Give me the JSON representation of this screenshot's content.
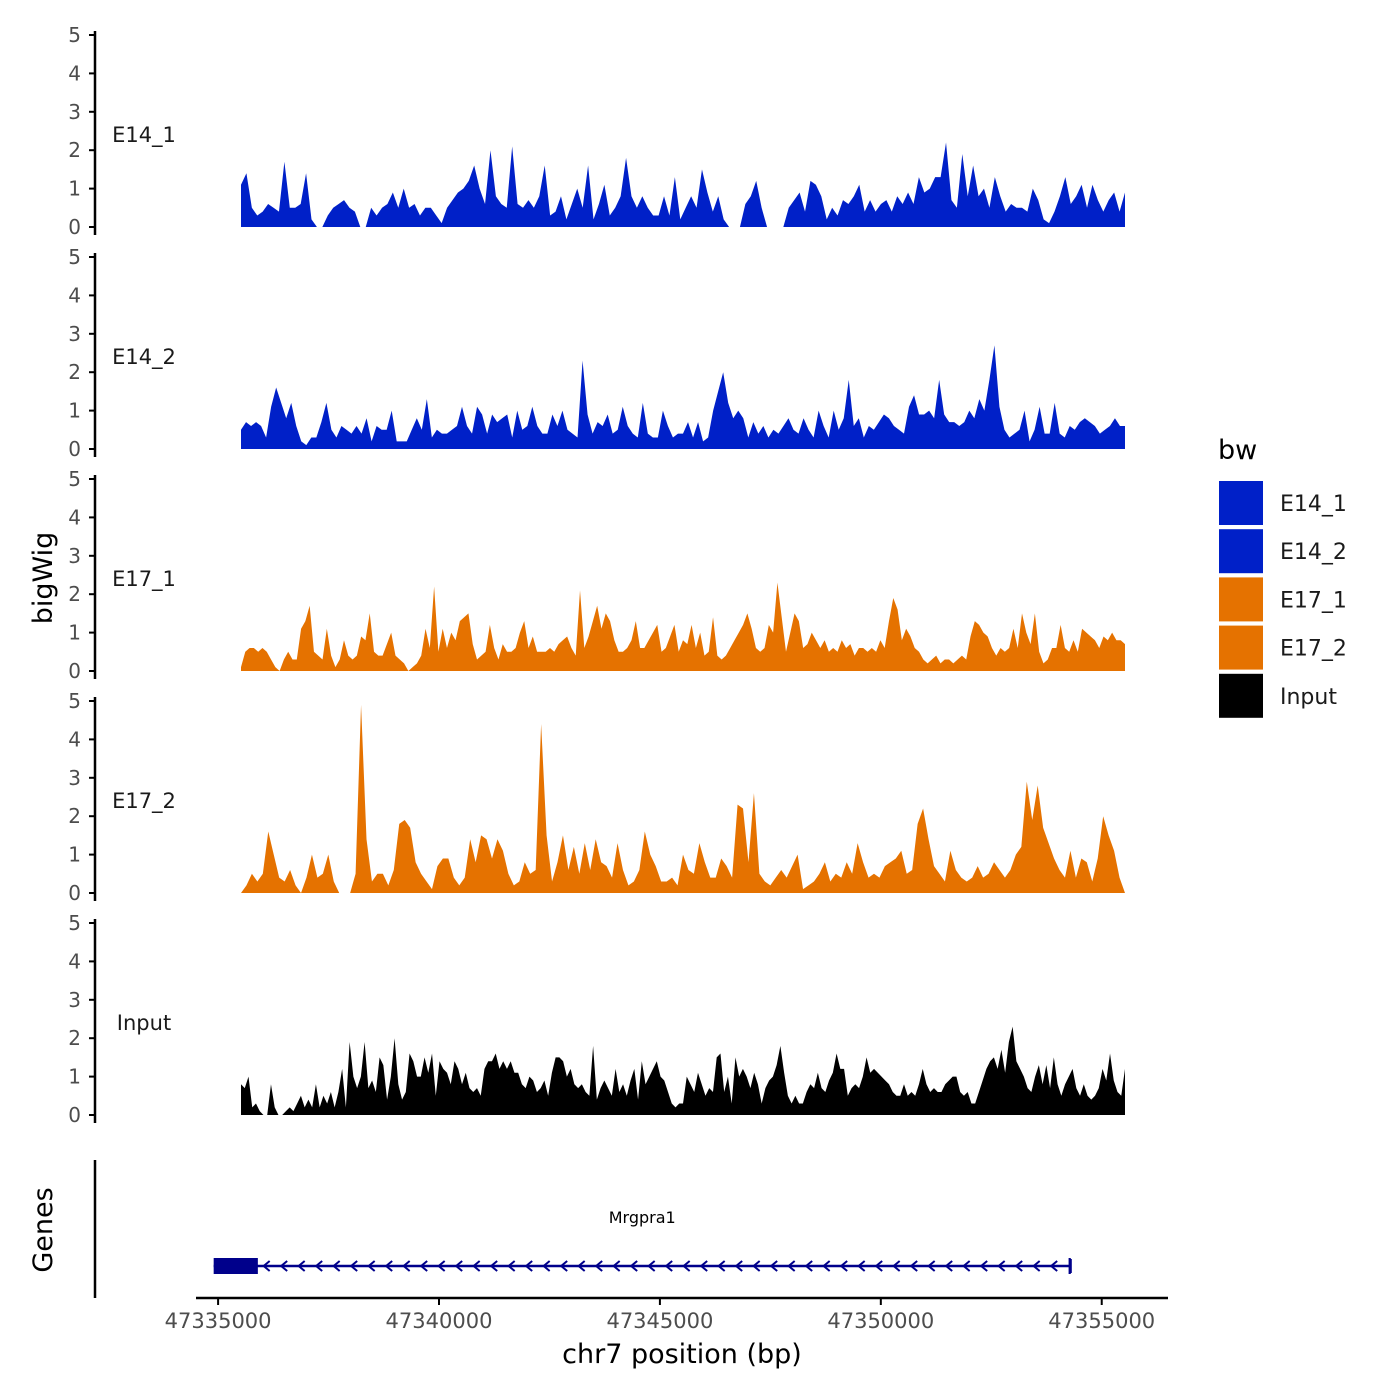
{
  "chart_data": {
    "type": "area",
    "chromosome": "chr7",
    "xlabel": "chr7 position (bp)",
    "ylabel": "bigWig",
    "genes_panel_label": "Genes",
    "xlim": [
      47334500,
      47356500
    ],
    "data_range": [
      47334900,
      47356200
    ],
    "ylim": [
      0,
      5
    ],
    "x_ticks": [
      47335000,
      47340000,
      47345000,
      47350000,
      47355000
    ],
    "x_tick_labels": [
      "47335000",
      "47340000",
      "47345000",
      "47350000",
      "47355000"
    ],
    "y_ticks": [
      0,
      1,
      2,
      3,
      4,
      5
    ],
    "y_tick_labels": [
      "0",
      "1",
      "2",
      "3",
      "4",
      "5"
    ],
    "grid": false,
    "legend": {
      "title": "bw",
      "position": "right",
      "entries": [
        {
          "label": "E14_1",
          "color": "#0020C8"
        },
        {
          "label": "E14_2",
          "color": "#0020C8"
        },
        {
          "label": "E17_1",
          "color": "#E57200"
        },
        {
          "label": "E17_2",
          "color": "#E57200"
        },
        {
          "label": "Input",
          "color": "#000000"
        }
      ]
    },
    "series": [
      {
        "name": "E14_1",
        "label": "E14_1",
        "color": "#0020C8",
        "values": [
          1.1,
          1.4,
          0.5,
          0.3,
          0.4,
          0.6,
          0.5,
          0.4,
          1.7,
          0.5,
          0.5,
          0.6,
          1.4,
          0.2,
          0,
          0,
          0.3,
          0.5,
          0.6,
          0.7,
          0.5,
          0.4,
          0,
          0,
          0.5,
          0.3,
          0.5,
          0.6,
          0.9,
          0.5,
          1.0,
          0.5,
          0.6,
          0.3,
          0.5,
          0.5,
          0.3,
          0.1,
          0.5,
          0.7,
          0.9,
          1.0,
          1.2,
          1.6,
          1.0,
          0.6,
          2.0,
          0.8,
          0.6,
          0.5,
          2.1,
          0.6,
          0.5,
          0.7,
          0.5,
          0.8,
          1.6,
          0.3,
          0.4,
          0.8,
          0.2,
          0.6,
          1.0,
          0.5,
          1.6,
          0.2,
          0.6,
          1.1,
          0.3,
          0.5,
          0.8,
          1.8,
          0.8,
          0.5,
          0.8,
          0.5,
          0.3,
          0.3,
          0.8,
          0.3,
          1.3,
          0.2,
          0.5,
          0.8,
          0.5,
          1.5,
          0.9,
          0.4,
          0.8,
          0.2,
          0,
          0,
          0,
          0.6,
          0.8,
          1.2,
          0.5,
          0,
          0,
          0,
          0,
          0.5,
          0.7,
          0.9,
          0.4,
          1.2,
          1.1,
          0.8,
          0.2,
          0.5,
          0.3,
          0.7,
          0.6,
          0.8,
          1.1,
          0.4,
          0.7,
          0.4,
          0.6,
          0.7,
          0.4,
          0.8,
          0.6,
          0.9,
          0.6,
          1.3,
          0.9,
          1.0,
          1.3,
          1.3,
          2.2,
          0.7,
          0.5,
          1.9,
          0.8,
          1.6,
          0.8,
          1.0,
          0.5,
          1.3,
          0.8,
          0.4,
          0.6,
          0.5,
          0.5,
          0.4,
          1.0,
          0.7,
          0.2,
          0.1,
          0.4,
          0.8,
          1.3,
          0.6,
          0.8,
          1.1,
          0.5,
          1.1,
          0.7,
          0.4,
          0.7,
          0.9,
          0.4,
          0.9
        ]
      },
      {
        "name": "E14_2",
        "label": "E14_2",
        "color": "#0020C8",
        "values": [
          0.5,
          0.7,
          0.6,
          0.7,
          0.6,
          0.3,
          1.1,
          1.6,
          1.2,
          0.8,
          1.2,
          0.6,
          0.2,
          0.1,
          0.3,
          0.3,
          0.7,
          1.2,
          0.5,
          0.3,
          0.6,
          0.5,
          0.4,
          0.6,
          0.4,
          0.8,
          0.2,
          0.6,
          0.5,
          0.5,
          1.0,
          0.2,
          0.2,
          0.2,
          0.5,
          0.8,
          0.5,
          1.3,
          0.3,
          0.5,
          0.4,
          0.4,
          0.5,
          0.6,
          1.1,
          0.6,
          0.4,
          1.1,
          0.9,
          0.4,
          0.9,
          0.7,
          0.8,
          0.9,
          0.3,
          1.0,
          0.5,
          0.6,
          1.1,
          0.6,
          0.4,
          0.4,
          0.9,
          0.6,
          1.0,
          0.5,
          0.4,
          0.3,
          2.3,
          0.9,
          0.4,
          0.7,
          0.6,
          0.9,
          0.4,
          0.5,
          1.1,
          0.6,
          0.4,
          0.3,
          1.2,
          0.4,
          0.3,
          0.3,
          1.0,
          0.6,
          0.3,
          0.4,
          0.4,
          0.7,
          0.3,
          0.7,
          0.2,
          0.3,
          1.0,
          1.5,
          2.0,
          1.2,
          0.8,
          1.0,
          0.8,
          0.3,
          0.7,
          0.4,
          0.6,
          0.3,
          0.5,
          0.4,
          0.6,
          0.8,
          0.5,
          0.4,
          0.8,
          0.5,
          0.3,
          1.0,
          0.6,
          0.3,
          1.0,
          0.5,
          0.8,
          1.8,
          0.6,
          0.8,
          0.3,
          0.6,
          0.5,
          0.7,
          0.9,
          0.8,
          0.6,
          0.5,
          0.4,
          1.1,
          1.4,
          0.9,
          0.9,
          1.0,
          0.8,
          1.8,
          0.9,
          0.7,
          0.7,
          0.6,
          0.7,
          1.0,
          0.8,
          1.3,
          1.0,
          1.8,
          2.7,
          1.1,
          0.5,
          0.3,
          0.4,
          0.5,
          1.0,
          0.2,
          0.5,
          1.1,
          0.4,
          0.4,
          1.2,
          0.4,
          0.3,
          0.6,
          0.5,
          0.7,
          0.8,
          0.7,
          0.6,
          0.4,
          0.5,
          0.6,
          0.8,
          0.6,
          0.6
        ]
      },
      {
        "name": "E17_1",
        "label": "E17_1",
        "color": "#E57200",
        "values": [
          0.1,
          0.5,
          0.6,
          0.6,
          0.5,
          0.6,
          0.5,
          0.3,
          0.1,
          0,
          0.3,
          0.5,
          0.3,
          0.3,
          1.1,
          1.3,
          1.7,
          0.5,
          0.4,
          0.3,
          1.1,
          0.4,
          0.1,
          0.3,
          0.8,
          0.4,
          0.3,
          0.4,
          0.9,
          0.8,
          1.5,
          0.5,
          0.4,
          0.4,
          0.7,
          1.0,
          0.4,
          0.3,
          0.2,
          0,
          0.1,
          0.2,
          0.4,
          1.1,
          0.6,
          2.2,
          0.5,
          1.1,
          0.6,
          1.0,
          0.8,
          1.3,
          1.4,
          1.5,
          0.7,
          0.3,
          0.4,
          0.5,
          1.2,
          0.6,
          0.3,
          0.7,
          0.5,
          0.5,
          0.6,
          1.0,
          1.3,
          0.6,
          0.9,
          0.5,
          0.5,
          0.5,
          0.6,
          0.5,
          0.7,
          0.8,
          0.9,
          0.6,
          0.4,
          2.1,
          0.6,
          0.9,
          1.3,
          1.7,
          1.1,
          1.5,
          1.3,
          0.8,
          0.5,
          0.5,
          0.6,
          0.8,
          1.3,
          0.6,
          0.6,
          0.8,
          1.0,
          1.2,
          0.5,
          0.6,
          0.9,
          1.2,
          0.5,
          0.8,
          0.7,
          1.2,
          0.6,
          1.0,
          0.4,
          0.5,
          1.4,
          0.4,
          0.3,
          0.4,
          0.6,
          0.8,
          1.0,
          1.2,
          1.5,
          1.1,
          0.6,
          0.5,
          0.6,
          1.2,
          1.0,
          2.3,
          1.4,
          0.5,
          1.0,
          1.5,
          1.3,
          0.6,
          0.7,
          1.0,
          0.8,
          0.6,
          0.8,
          0.5,
          0.6,
          0.5,
          0.8,
          0.6,
          0.7,
          0.4,
          0.6,
          0.6,
          0.5,
          0.6,
          0.5,
          0.8,
          0.6,
          1.3,
          1.9,
          1.6,
          0.8,
          1.1,
          0.9,
          0.6,
          0.5,
          0.3,
          0.2,
          0.3,
          0.4,
          0.2,
          0.3,
          0.3,
          0.2,
          0.3,
          0.4,
          0.3,
          0.9,
          1.3,
          1.2,
          1.0,
          0.9,
          0.6,
          0.4,
          0.6,
          0.5,
          0.6,
          1.1,
          0.6,
          1.5,
          1.0,
          0.7,
          1.5,
          0.5,
          0.2,
          0.3,
          0.6,
          0.6,
          1.2,
          0.6,
          0.5,
          0.8,
          0.5,
          1.1,
          1.0,
          0.9,
          0.8,
          0.6,
          0.9,
          0.8,
          1.0,
          0.8,
          0.8,
          0.7
        ]
      },
      {
        "name": "E17_2",
        "label": "E17_2",
        "color": "#E57200",
        "values": [
          0,
          0.2,
          0.5,
          0.3,
          0.5,
          1.6,
          1.0,
          0.4,
          0.3,
          0.6,
          0.2,
          0,
          0.4,
          1.0,
          0.4,
          0.5,
          1.0,
          0.3,
          0,
          0,
          0,
          0.5,
          4.9,
          1.4,
          0.3,
          0.5,
          0.5,
          0.2,
          0.6,
          1.8,
          1.9,
          1.7,
          0.8,
          0.5,
          0.3,
          0.1,
          0.7,
          0.9,
          0.9,
          0.4,
          0.2,
          0.4,
          1.4,
          0.8,
          1.5,
          1.4,
          0.9,
          1.4,
          1.1,
          0.5,
          0.2,
          0.3,
          0.8,
          0.5,
          0.6,
          4.4,
          1.5,
          0.3,
          0.8,
          1.5,
          0.6,
          1.2,
          0.5,
          1.3,
          0.6,
          1.4,
          0.8,
          0.7,
          0.4,
          1.3,
          0.6,
          0.2,
          0.3,
          0.6,
          1.6,
          1.0,
          0.7,
          0.3,
          0.3,
          0.4,
          0.2,
          1.0,
          0.6,
          0.5,
          1.3,
          0.8,
          0.4,
          0.4,
          0.9,
          0.7,
          0.4,
          2.3,
          2.2,
          0.8,
          2.6,
          0.5,
          0.3,
          0.2,
          0.4,
          0.6,
          0.4,
          0.7,
          1.0,
          0.1,
          0.2,
          0.3,
          0.5,
          0.8,
          0.3,
          0.5,
          0.4,
          0.8,
          0.5,
          1.3,
          0.8,
          0.4,
          0.5,
          0.4,
          0.7,
          0.8,
          0.9,
          1.1,
          0.5,
          0.6,
          1.8,
          2.2,
          1.4,
          0.7,
          0.5,
          0.3,
          1.1,
          0.6,
          0.4,
          0.3,
          0.4,
          0.7,
          0.4,
          0.5,
          0.8,
          0.6,
          0.4,
          0.6,
          1.0,
          1.2,
          2.9,
          1.9,
          2.8,
          1.7,
          1.3,
          0.9,
          0.6,
          0.4,
          1.1,
          0.4,
          0.9,
          0.8,
          0.3,
          0.9,
          2.0,
          1.5,
          1.1,
          0.4,
          0
        ]
      },
      {
        "name": "Input",
        "label": "Input",
        "color": "#000000",
        "values": [
          0.8,
          0.7,
          1.0,
          0.2,
          0.3,
          0.1,
          0,
          0,
          0.8,
          0.2,
          0,
          0,
          0.1,
          0.2,
          0.1,
          0.3,
          0.5,
          0.2,
          0.4,
          0.2,
          0.8,
          0.2,
          0.5,
          0.3,
          0.6,
          0.2,
          0.6,
          1.2,
          0.2,
          1.9,
          1.0,
          0.7,
          1.0,
          1.9,
          0.7,
          0.9,
          0.6,
          1.5,
          1.3,
          0.4,
          1.0,
          2.0,
          0.8,
          0.4,
          0.6,
          1.6,
          1.4,
          1.0,
          1.0,
          1.5,
          1.1,
          1.6,
          0.5,
          1.4,
          1.2,
          1.1,
          0.8,
          1.4,
          1.2,
          0.8,
          1.1,
          0.7,
          0.6,
          0.7,
          0.5,
          1.2,
          1.4,
          1.4,
          1.6,
          1.2,
          1.4,
          1.2,
          1.4,
          1.1,
          1.1,
          0.8,
          0.7,
          1.0,
          0.9,
          0.6,
          0.7,
          0.9,
          0.5,
          1.1,
          1.5,
          1.5,
          1.4,
          1.0,
          1.2,
          0.8,
          0.7,
          0.8,
          0.6,
          0.5,
          1.8,
          0.4,
          0.7,
          0.9,
          0.7,
          0.5,
          1.2,
          0.6,
          0.8,
          0.5,
          0.9,
          1.2,
          0.4,
          1.4,
          0.8,
          1.0,
          1.2,
          1.4,
          1.0,
          0.9,
          0.6,
          0.3,
          0.2,
          0.3,
          0.3,
          1.0,
          0.8,
          0.6,
          1.1,
          0.8,
          0.5,
          0.7,
          0.6,
          1.5,
          1.6,
          0.6,
          1.0,
          0.3,
          1.5,
          1.0,
          1.2,
          1.0,
          0.7,
          1.1,
          0.8,
          0.3,
          0.7,
          0.9,
          1.0,
          1.3,
          1.8,
          1.1,
          0.5,
          0.3,
          0.5,
          0.3,
          0.3,
          0.6,
          0.8,
          0.7,
          1.1,
          0.7,
          0.6,
          0.9,
          1.1,
          1.6,
          1.2,
          1.2,
          0.5,
          0.7,
          0.8,
          0.7,
          1.0,
          1.5,
          1.1,
          1.2,
          1.1,
          1.0,
          0.9,
          0.8,
          0.6,
          0.5,
          0.5,
          0.8,
          0.5,
          0.6,
          0.5,
          0.8,
          1.2,
          0.8,
          0.6,
          0.7,
          0.6,
          0.6,
          0.8,
          0.9,
          1.0,
          1.0,
          0.6,
          0.5,
          0.6,
          0.3,
          0.3,
          0.6,
          0.9,
          1.2,
          1.4,
          1.5,
          1.2,
          1.7,
          1.1,
          1.9,
          2.3,
          1.4,
          1.2,
          1.0,
          0.7,
          0.6,
          1.0,
          1.3,
          0.8,
          1.3,
          0.7,
          1.5,
          0.8,
          0.5,
          0.8,
          1.0,
          1.2,
          0.7,
          0.5,
          0.8,
          0.5,
          0.4,
          0.5,
          0.7,
          1.2,
          0.9,
          1.6,
          0.9,
          0.6,
          0.5,
          1.2
        ]
      }
    ],
    "genes": [
      {
        "name": "Mrgpra1",
        "strand": "-",
        "start": 47334900,
        "end": 47354300,
        "exons": [
          [
            47334900,
            47335900
          ],
          [
            47354250,
            47354300
          ]
        ],
        "color": "#00008B"
      }
    ]
  }
}
